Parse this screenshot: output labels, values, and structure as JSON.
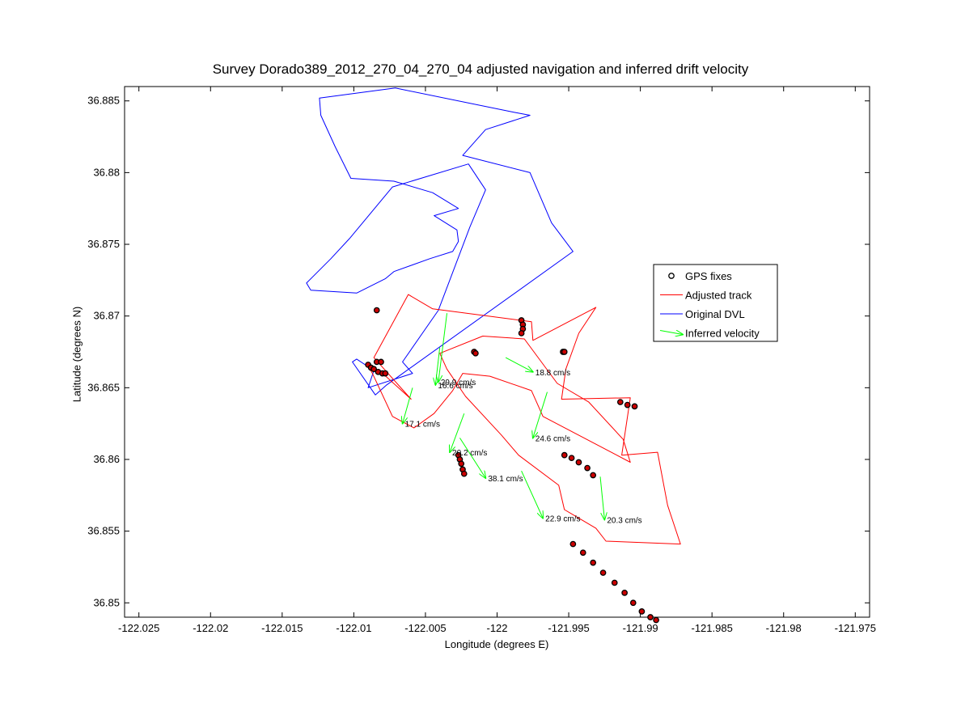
{
  "chart_data": {
    "type": "line",
    "title": "Survey Dorado389_2012_270_04_270_04 adjusted navigation and inferred drift velocity",
    "xlabel": "Longitude (degrees E)",
    "ylabel": "Latitude (degrees N)",
    "xlim": [
      -122.026,
      -121.974
    ],
    "ylim": [
      36.849,
      36.886
    ],
    "xticks": [
      -122.025,
      -122.02,
      -122.015,
      -122.01,
      -122.005,
      -122.0,
      -121.995,
      -121.99,
      -121.985,
      -121.98,
      -121.975
    ],
    "xticklabels": [
      "-122.025",
      "-122.02",
      "-122.015",
      "-122.01",
      "-122.005",
      "-122",
      "-121.995",
      "-121.99",
      "-121.985",
      "-121.98",
      "-121.975"
    ],
    "yticks": [
      36.85,
      36.855,
      36.86,
      36.865,
      36.87,
      36.875,
      36.88,
      36.885
    ],
    "yticklabels": [
      "36.85",
      "36.855",
      "36.86",
      "36.865",
      "36.87",
      "36.875",
      "36.88",
      "36.885"
    ],
    "grid": false,
    "legend_position": "right",
    "colors": {
      "gps": "#000000",
      "gps_fill": "#cc0000",
      "adjusted": "#ff0000",
      "dvl": "#0000ff",
      "velocity": "#00ff00"
    },
    "series": [
      {
        "name": "Original DVL",
        "color": "#0000ff",
        "x": [
          -122.0086,
          -122.0098,
          -122.0101,
          -122.0085,
          -122.0077,
          -121.9947,
          -121.9962,
          -121.9977,
          -122.0024,
          -122.0008,
          -121.9977,
          -121.9988,
          -122.0071,
          -122.0124,
          -122.0123,
          -122.0113,
          -122.0102,
          -122.0072,
          -122.0045,
          -122.0027,
          -122.0044,
          -122.0028,
          -122.0027,
          -122.0031,
          -122.0047,
          -122.0072,
          -122.0078,
          -122.0098,
          -122.013,
          -122.0133,
          -122.0116,
          -122.0103,
          -122.0073,
          -122.002,
          -122.0008,
          -122.0019,
          -122.0041,
          -122.0066,
          -122.0059,
          -122.009,
          -122.0086
        ],
        "y": [
          36.8662,
          36.867,
          36.8668,
          36.8645,
          36.8652,
          36.8745,
          36.8765,
          36.88,
          36.8812,
          36.883,
          36.884,
          36.8842,
          36.8859,
          36.8852,
          36.884,
          36.8818,
          36.8796,
          36.8794,
          36.8786,
          36.8775,
          36.877,
          36.876,
          36.8752,
          36.8745,
          36.874,
          36.8731,
          36.8726,
          36.8716,
          36.8718,
          36.8723,
          36.874,
          36.8754,
          36.879,
          36.8806,
          36.8788,
          36.8762,
          36.8704,
          36.8668,
          36.866,
          36.865,
          36.8662
        ]
      },
      {
        "name": "Adjusted track",
        "color": "#ff0000",
        "x": [
          -122.009,
          -122.0081,
          -122.006,
          -122.0086,
          -122.0062,
          -122.0045,
          -121.9976,
          -121.9975,
          -121.9931,
          -121.9943,
          -121.9952,
          -121.9955,
          -121.9907,
          -121.9913,
          -121.9888,
          -121.9881,
          -121.9872,
          -121.9924,
          -121.9931,
          -121.9953,
          -121.9957,
          -121.9985,
          -121.9997,
          -122.0022,
          -122.0035,
          -122.004,
          -122.001,
          -121.9981,
          -121.9958,
          -121.9936,
          -121.9912,
          -121.9907,
          -121.9968,
          -121.9976,
          -122.0005,
          -122.0024,
          -122.0031,
          -122.0044,
          -122.0058,
          -122.0073,
          -122.0087,
          -122.009
        ],
        "y": [
          36.8665,
          36.8661,
          36.8642,
          36.8671,
          36.8715,
          36.8705,
          36.8696,
          36.8683,
          36.8706,
          36.8688,
          36.8663,
          36.8642,
          36.8643,
          36.8603,
          36.8605,
          36.8568,
          36.8541,
          36.8543,
          36.8552,
          36.8565,
          36.8582,
          36.8603,
          36.8617,
          36.8644,
          36.8663,
          36.8674,
          36.8686,
          36.8684,
          36.8653,
          36.864,
          36.8614,
          36.8598,
          36.863,
          36.8648,
          36.8658,
          36.866,
          36.8648,
          36.8632,
          36.8622,
          36.863,
          36.866,
          36.8665
        ]
      }
    ],
    "gps_fixes": [
      [
        -122.0084,
        36.8704
      ],
      [
        -122.009,
        36.8666
      ],
      [
        -122.0088,
        36.8664
      ],
      [
        -122.0086,
        36.8663
      ],
      [
        -122.0083,
        36.8661
      ],
      [
        -122.008,
        36.866
      ],
      [
        -122.0078,
        36.866
      ],
      [
        -122.0084,
        36.8668
      ],
      [
        -122.0081,
        36.8668
      ],
      [
        -122.0016,
        36.8675
      ],
      [
        -122.0015,
        36.8674
      ],
      [
        -121.9983,
        36.8697
      ],
      [
        -121.9982,
        36.8694
      ],
      [
        -121.9982,
        36.8691
      ],
      [
        -121.9983,
        36.8688
      ],
      [
        -121.9954,
        36.8675
      ],
      [
        -121.9953,
        36.8675
      ],
      [
        -121.9914,
        36.864
      ],
      [
        -121.9909,
        36.8638
      ],
      [
        -121.9904,
        36.8637
      ],
      [
        -122.0027,
        36.8603
      ],
      [
        -122.0026,
        36.86
      ],
      [
        -122.0025,
        36.8597
      ],
      [
        -122.0024,
        36.8593
      ],
      [
        -122.0023,
        36.859
      ],
      [
        -121.9953,
        36.8603
      ],
      [
        -121.9948,
        36.8601
      ],
      [
        -121.9943,
        36.8598
      ],
      [
        -121.9937,
        36.8594
      ],
      [
        -121.9933,
        36.8589
      ],
      [
        -121.9947,
        36.8541
      ],
      [
        -121.994,
        36.8535
      ],
      [
        -121.9933,
        36.8528
      ],
      [
        -121.9926,
        36.8521
      ],
      [
        -121.9918,
        36.8514
      ],
      [
        -121.9911,
        36.8507
      ],
      [
        -121.9905,
        36.85
      ],
      [
        -121.9899,
        36.8494
      ],
      [
        -121.9893,
        36.849
      ],
      [
        -121.9889,
        36.8488
      ]
    ],
    "velocities": [
      {
        "x": -122.0035,
        "y": 36.8702,
        "dx": -0.0006,
        "dy": -0.0048,
        "label": "29.9 cm/s"
      },
      {
        "x": -122.004,
        "y": 36.8678,
        "dx": -0.0003,
        "dy": -0.0026,
        "label": "16.6 cm/s"
      },
      {
        "x": -121.9994,
        "y": 36.8671,
        "dx": 0.0019,
        "dy": -0.001,
        "label": "18.8 cm/s"
      },
      {
        "x": -121.9965,
        "y": 36.8647,
        "dx": -0.001,
        "dy": -0.0032,
        "label": "24.6 cm/s"
      },
      {
        "x": -122.0059,
        "y": 36.865,
        "dx": -0.0007,
        "dy": -0.0025,
        "label": "17.1 cm/s"
      },
      {
        "x": -122.0023,
        "y": 36.8632,
        "dx": -0.001,
        "dy": -0.0027,
        "label": "20.2 cm/s"
      },
      {
        "x": -122.0026,
        "y": 36.8615,
        "dx": 0.0018,
        "dy": -0.0028,
        "label": "38.1 cm/s"
      },
      {
        "x": -121.9983,
        "y": 36.8592,
        "dx": 0.0015,
        "dy": -0.0033,
        "label": "22.9 cm/s"
      },
      {
        "x": -121.9928,
        "y": 36.8588,
        "dx": 0.0003,
        "dy": -0.003,
        "label": "20.3 cm/s"
      }
    ],
    "legend": [
      "GPS fixes",
      "Adjusted track",
      "Original DVL",
      "Inferred velocity"
    ]
  }
}
